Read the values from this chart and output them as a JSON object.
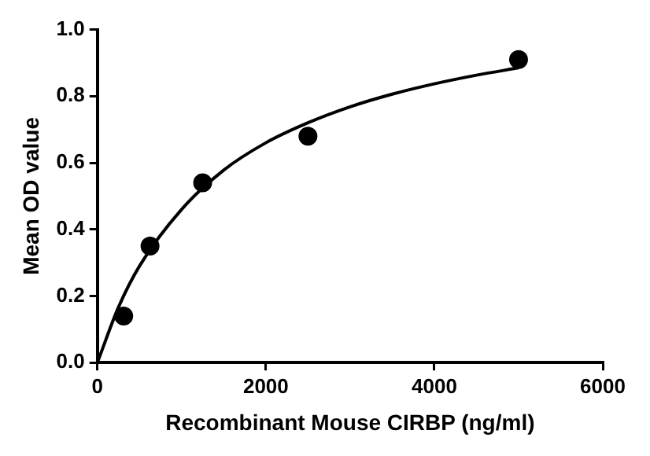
{
  "chart_data": {
    "type": "scatter",
    "xlabel": "Recombinant Mouse CIRBP (ng/ml)",
    "ylabel": "Mean OD value",
    "xlim": [
      0,
      6000
    ],
    "xticks": [
      0,
      2000,
      4000,
      6000
    ],
    "ylim": [
      0,
      1.0
    ],
    "yticks": [
      {
        "value": 0,
        "label": "0.0"
      },
      {
        "value": 0.2,
        "label": "0.2"
      },
      {
        "value": 0.4,
        "label": "0.4"
      },
      {
        "value": 0.6,
        "label": "0.6"
      },
      {
        "value": 0.8,
        "label": "0.8"
      },
      {
        "value": 1.0,
        "label": "1.0"
      }
    ],
    "grid": false,
    "legend": false,
    "series": [
      {
        "color": "#000000",
        "marker": "circle",
        "x": [
          312.5,
          625,
          1250,
          2500,
          5000
        ],
        "values": [
          0.14,
          0.35,
          0.54,
          0.68,
          0.91
        ]
      },
      {
        "type": "line",
        "color": "#000000",
        "marker": "none",
        "line_style": "solid",
        "x": [
          0,
          250,
          500,
          1000,
          1500,
          2000,
          2500,
          3000,
          3500,
          4000,
          4500,
          5000
        ],
        "values": [
          0,
          0.166,
          0.29,
          0.46,
          0.578,
          0.66,
          0.72,
          0.768,
          0.806,
          0.837,
          0.863,
          0.885
        ]
      }
    ]
  }
}
